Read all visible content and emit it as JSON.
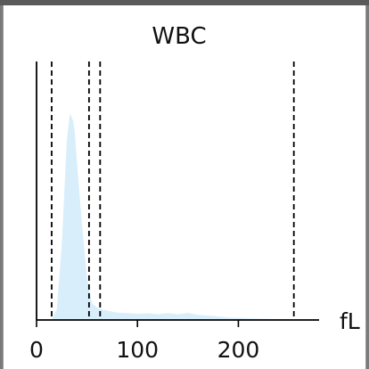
{
  "chart_data": {
    "type": "area",
    "title": "WBC",
    "unit_label": "fL",
    "xlim": [
      0,
      280
    ],
    "ylim": [
      0,
      1
    ],
    "xticks": [
      0,
      100,
      200
    ],
    "xtick_labels": [
      "0",
      "100",
      "200"
    ],
    "grid": false,
    "fill_color": "#d9eefb",
    "axis_color": "#000000",
    "threshold_lines": [
      15,
      52,
      63,
      255
    ],
    "threshold_style": "dashed",
    "series": [
      {
        "x": [
          15,
          20,
          25,
          30,
          33,
          36,
          38,
          40,
          45,
          50,
          55,
          60,
          65,
          70,
          80,
          90,
          100,
          110,
          120,
          130,
          140,
          150,
          160,
          175,
          190,
          210,
          230,
          250,
          260
        ],
        "values": [
          0.0,
          0.05,
          0.36,
          0.86,
          0.99,
          0.96,
          0.9,
          0.76,
          0.46,
          0.2,
          0.08,
          0.06,
          0.05,
          0.045,
          0.035,
          0.033,
          0.03,
          0.032,
          0.028,
          0.033,
          0.027,
          0.034,
          0.024,
          0.02,
          0.012,
          0.008,
          0.005,
          0.003,
          0.0
        ]
      }
    ]
  }
}
